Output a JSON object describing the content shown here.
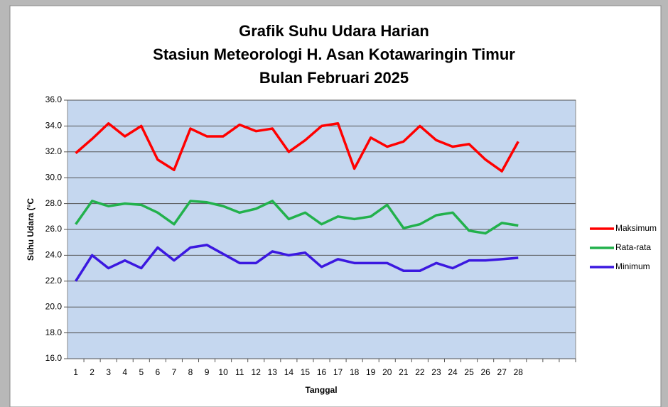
{
  "chart_data": {
    "type": "line",
    "title": [
      "Grafik Suhu Udara Harian",
      "Stasiun Meteorologi H. Asan Kotawaringin Timur",
      "Bulan Februari 2025"
    ],
    "xlabel": "Tanggal",
    "ylabel": "Suhu Udara (°C",
    "categories": [
      "1",
      "2",
      "3",
      "4",
      "5",
      "6",
      "7",
      "8",
      "9",
      "10",
      "11",
      "12",
      "13",
      "14",
      "15",
      "16",
      "17",
      "18",
      "19",
      "20",
      "21",
      "22",
      "23",
      "24",
      "25",
      "26",
      "27",
      "28",
      null,
      null,
      null
    ],
    "series": [
      {
        "name": "Maksimum",
        "color": "#ff0000",
        "values": [
          31.9,
          33.0,
          34.2,
          33.2,
          34.0,
          31.4,
          30.6,
          33.8,
          33.2,
          33.2,
          34.1,
          33.6,
          33.8,
          32.0,
          32.9,
          34.0,
          34.2,
          30.7,
          33.1,
          32.4,
          32.8,
          34.0,
          32.9,
          32.4,
          32.6,
          31.4,
          30.5,
          32.8,
          null,
          null,
          null
        ]
      },
      {
        "name": "Rata-rata",
        "color": "#22b14c",
        "values": [
          26.4,
          28.2,
          27.8,
          28.0,
          27.9,
          27.3,
          26.4,
          28.2,
          28.1,
          27.8,
          27.3,
          27.6,
          28.2,
          26.8,
          27.3,
          26.4,
          27.0,
          26.8,
          27.0,
          27.9,
          26.1,
          26.4,
          27.1,
          27.3,
          25.9,
          25.7,
          26.5,
          26.3,
          null,
          null,
          null
        ]
      },
      {
        "name": "Minimum",
        "color": "#3b18e0",
        "values": [
          22.0,
          24.0,
          23.0,
          23.6,
          23.0,
          24.6,
          23.6,
          24.6,
          24.8,
          24.1,
          23.4,
          23.4,
          24.3,
          24.0,
          24.2,
          23.1,
          23.7,
          23.4,
          23.4,
          23.4,
          22.8,
          22.8,
          23.4,
          23.0,
          23.6,
          23.6,
          23.7,
          23.8,
          null,
          null,
          null
        ]
      }
    ],
    "ylim": [
      16,
      36
    ],
    "yticks": [
      {
        "value": 16,
        "label": "16.0"
      },
      {
        "value": 18,
        "label": "18.0"
      },
      {
        "value": 20,
        "label": "20.0"
      },
      {
        "value": 22,
        "label": "22.0"
      },
      {
        "value": 24,
        "label": "24.0"
      },
      {
        "value": 26,
        "label": "26.0"
      },
      {
        "value": 28,
        "label": "28.0"
      },
      {
        "value": 30,
        "label": "30.0"
      },
      {
        "value": 32,
        "label": "32.0"
      },
      {
        "value": 34,
        "label": "34.0"
      },
      {
        "value": 36,
        "label": "36.0"
      }
    ],
    "grid": true,
    "legend": "right"
  }
}
